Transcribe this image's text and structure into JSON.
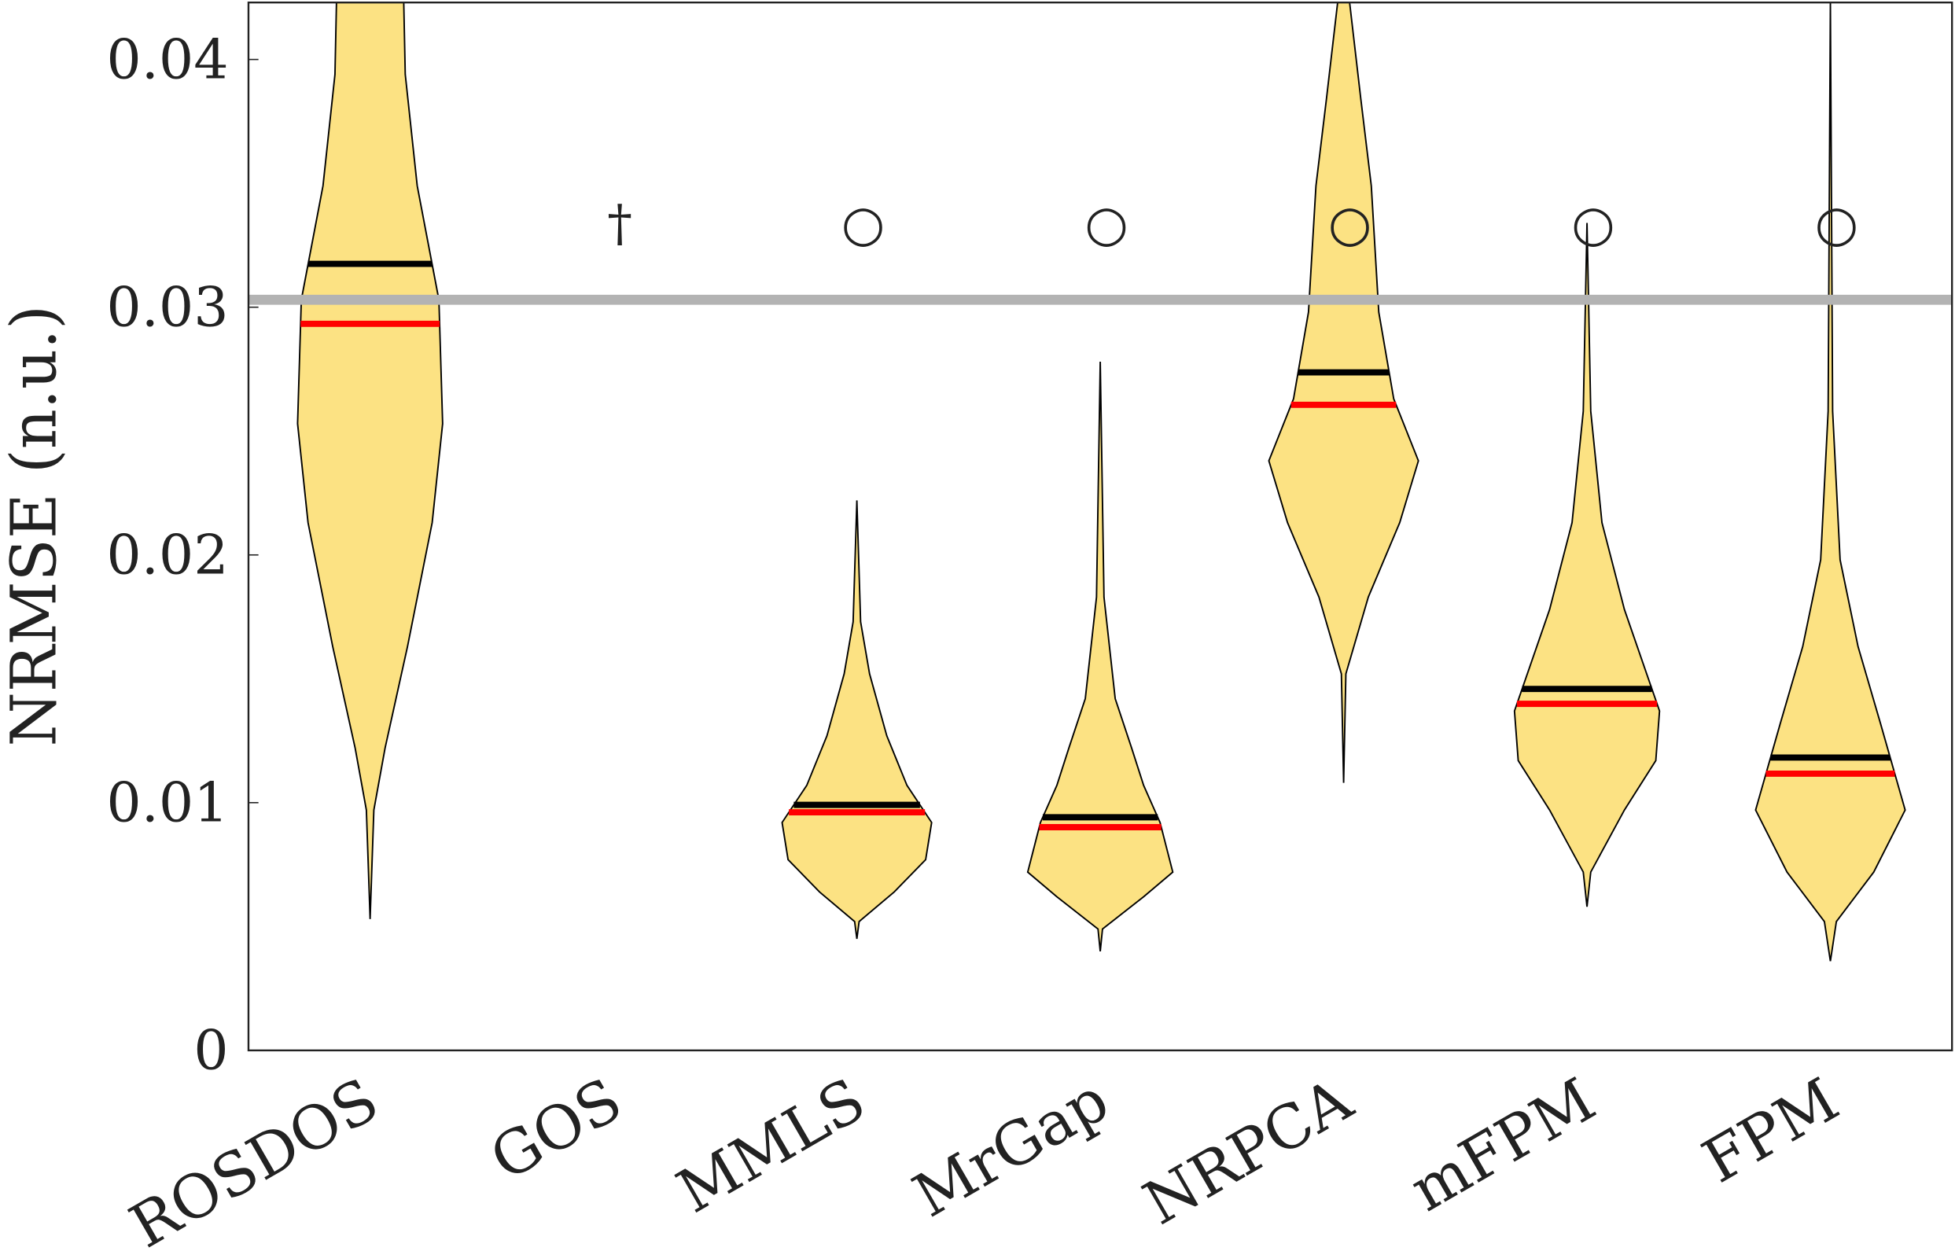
{
  "chart_data": {
    "type": "violin",
    "ylabel": "NRMSE (n.u.)",
    "categories": [
      "ROSDOS",
      "GOS",
      "MMLS",
      "MrGap",
      "NRPCA",
      "mFPM",
      "FPM"
    ],
    "ylim": [
      0,
      0.0423
    ],
    "yticks": [
      0,
      0.01,
      0.02,
      0.03,
      0.04
    ],
    "fill": "#fce283",
    "reference_line": {
      "value": 0.0303,
      "color": "#b3b3b3"
    },
    "marker_value": 0.0334,
    "markers": [
      null,
      "†",
      "○",
      "○",
      "○",
      "○",
      "○"
    ],
    "mean": {
      "color": "#000000",
      "values": [
        0.03175,
        null,
        0.00991,
        0.00941,
        0.02737,
        0.01459,
        0.01182
      ]
    },
    "median": {
      "color": "#ff0000",
      "values": [
        0.02933,
        null,
        0.00961,
        0.00901,
        0.02606,
        0.01399,
        0.01117
      ]
    },
    "violins": [
      {
        "levels": [
          0.0053,
          0.0097,
          0.0122,
          0.0163,
          0.0213,
          0.0253,
          0.0303,
          0.0349,
          0.0394,
          0.0423
        ],
        "density": [
          0,
          0.05,
          0.2,
          0.5,
          0.83,
          0.97,
          0.92,
          0.63,
          0.47,
          0.45
        ]
      },
      null,
      {
        "levels": [
          0.0045,
          0.0052,
          0.0064,
          0.0077,
          0.0092,
          0.0107,
          0.0127,
          0.0152,
          0.0173,
          0.0222
        ],
        "density": [
          0,
          0.03,
          0.5,
          0.92,
          1.0,
          0.67,
          0.4,
          0.17,
          0.05,
          0
        ]
      },
      {
        "levels": [
          0.004,
          0.0049,
          0.0062,
          0.0072,
          0.0092,
          0.0107,
          0.0122,
          0.0142,
          0.0183,
          0.0278
        ],
        "density": [
          0,
          0.03,
          0.58,
          0.97,
          0.8,
          0.58,
          0.42,
          0.2,
          0.05,
          0
        ]
      },
      {
        "levels": [
          0.0108,
          0.0152,
          0.0183,
          0.0213,
          0.0238,
          0.0263,
          0.0298,
          0.0349,
          0.0384,
          0.0423
        ],
        "density": [
          0,
          0.03,
          0.33,
          0.75,
          1.0,
          0.67,
          0.47,
          0.37,
          0.23,
          0.08
        ]
      },
      {
        "levels": [
          0.0058,
          0.0072,
          0.0097,
          0.0117,
          0.0137,
          0.0178,
          0.0213,
          0.0258,
          0.0334
        ],
        "density": [
          0,
          0.05,
          0.5,
          0.92,
          0.97,
          0.5,
          0.2,
          0.05,
          0
        ]
      },
      {
        "levels": [
          0.0036,
          0.0052,
          0.0072,
          0.0097,
          0.0132,
          0.0163,
          0.0198,
          0.0258,
          0.0423
        ],
        "density": [
          0,
          0.08,
          0.58,
          1.0,
          0.67,
          0.37,
          0.13,
          0.03,
          0
        ]
      }
    ]
  }
}
